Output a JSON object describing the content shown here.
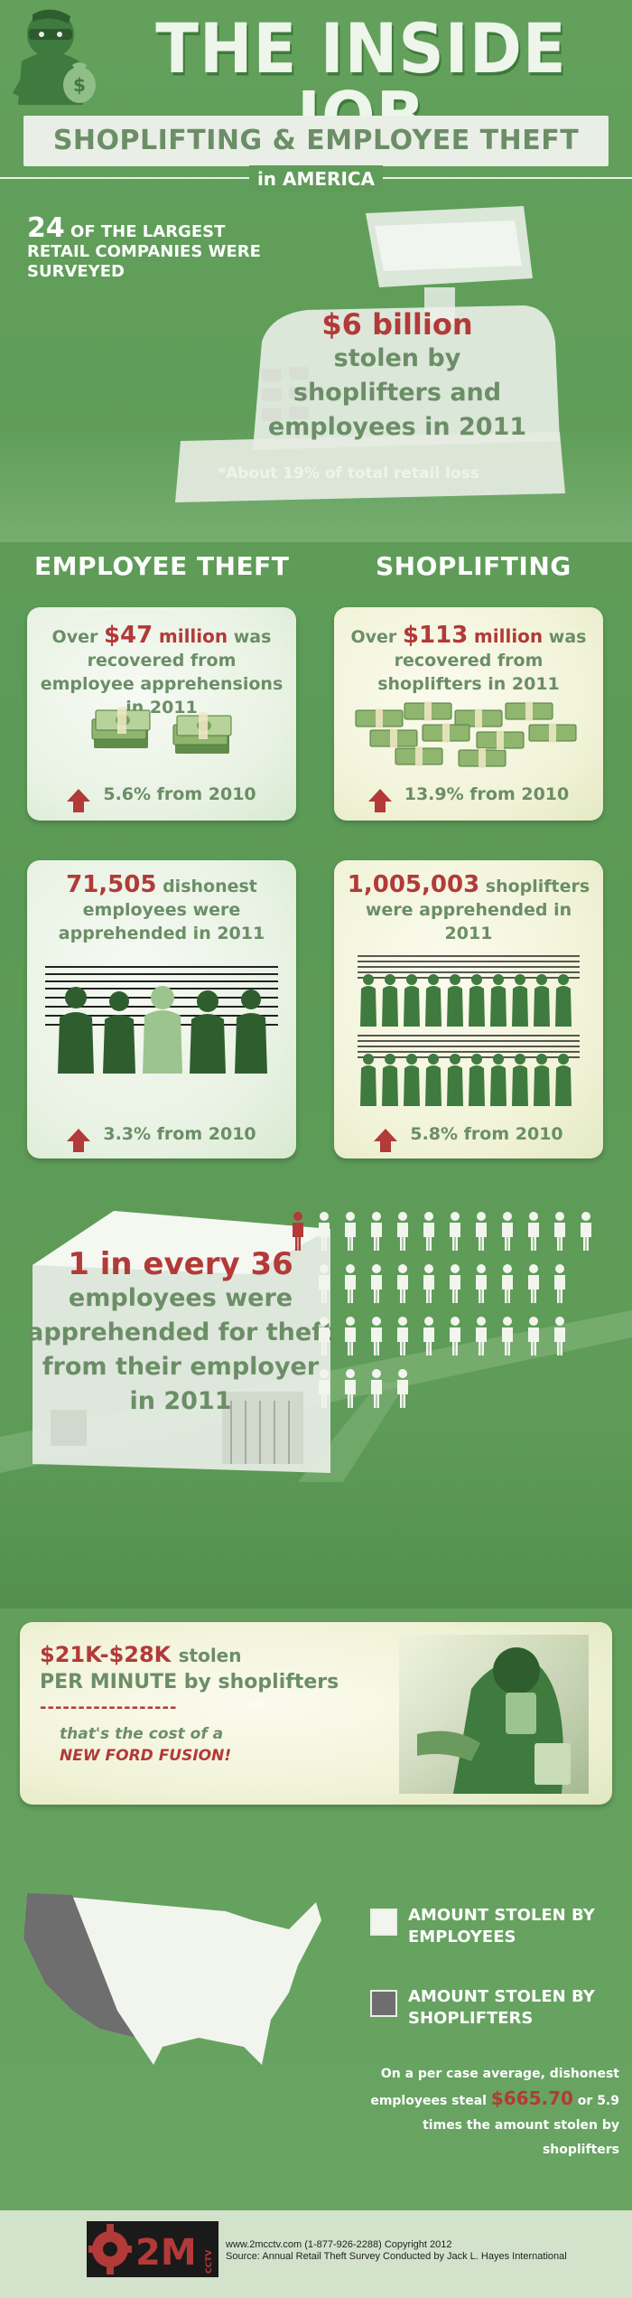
{
  "header": {
    "title": "THE INSIDE JOB",
    "subtitle": "SHOPLIFTING & EMPLOYEE THEFT",
    "region": "in AMERICA"
  },
  "intro": {
    "survey_count": "24",
    "survey_text": "OF THE LARGEST RETAIL COMPANIES WERE SURVEYED",
    "total_amount": "$6 billion",
    "total_text_1": "stolen by",
    "total_text_2": "shoplifters and",
    "total_text_3": "employees in 2011",
    "total_note": "*About 19% of total retail loss"
  },
  "columns": {
    "employee_heading": "EMPLOYEE THEFT",
    "shoplifting_heading": "SHOPLIFTING"
  },
  "employee_recovered": {
    "prefix": "Over ",
    "amount": "$47",
    "unit": "million",
    "text": "was recovered from employee apprehensions in 2011",
    "change": "5.6% from 2010"
  },
  "shoplift_recovered": {
    "prefix": "Over ",
    "amount": "$113",
    "unit": "million",
    "text": "was recovered from shoplifters in 2011",
    "change": "13.9% from 2010"
  },
  "employee_apprehended": {
    "count": "71,505",
    "text": "dishonest employees were apprehended in 2011",
    "change": "3.3% from 2010"
  },
  "shoplift_apprehended": {
    "count": "1,005,003",
    "text": "shoplifters were apprehended in 2011",
    "change": "5.8% from 2010"
  },
  "ratio": {
    "part1": "1 in every 36",
    "part2": "employees were apprehended for theft from their employer in 2011",
    "total_figures": 36,
    "highlighted": 1,
    "highlight_color": "#b23a38",
    "figure_color": "#f2f5ee"
  },
  "per_minute": {
    "amount": "$21K-$28K",
    "stolen": "stolen",
    "line2": "PER MINUTE by shoplifters",
    "dashes": "------------------",
    "line3": "that's the cost of a",
    "line4": "NEW FORD FUSION!"
  },
  "map": {
    "legend_employees": "AMOUNT STOLEN BY EMPLOYEES",
    "legend_shoplifters": "AMOUNT STOLEN BY SHOPLIFTERS",
    "employees_color": "#f2f5ee",
    "shoplifters_color": "#6e6e6e",
    "per_case_1": "On a per case average, dishonest",
    "per_case_2a": "employees steal ",
    "per_case_amount": "$665.70",
    "per_case_2b": " or 5.9",
    "per_case_3": "times the amount stolen by shoplifters"
  },
  "footer": {
    "logo_text": "2M",
    "logo_small": "CCTV",
    "line1": "www.2mcctv.com (1-877-926-2288) Copyright 2012",
    "line2": "Source: Annual Retail Theft Survey Conducted by Jack L. Hayes International"
  },
  "colors": {
    "background": "#5f9c59",
    "accent_red": "#b23a38",
    "text_green": "#6b8e66",
    "card_light": "#eef5ea"
  }
}
